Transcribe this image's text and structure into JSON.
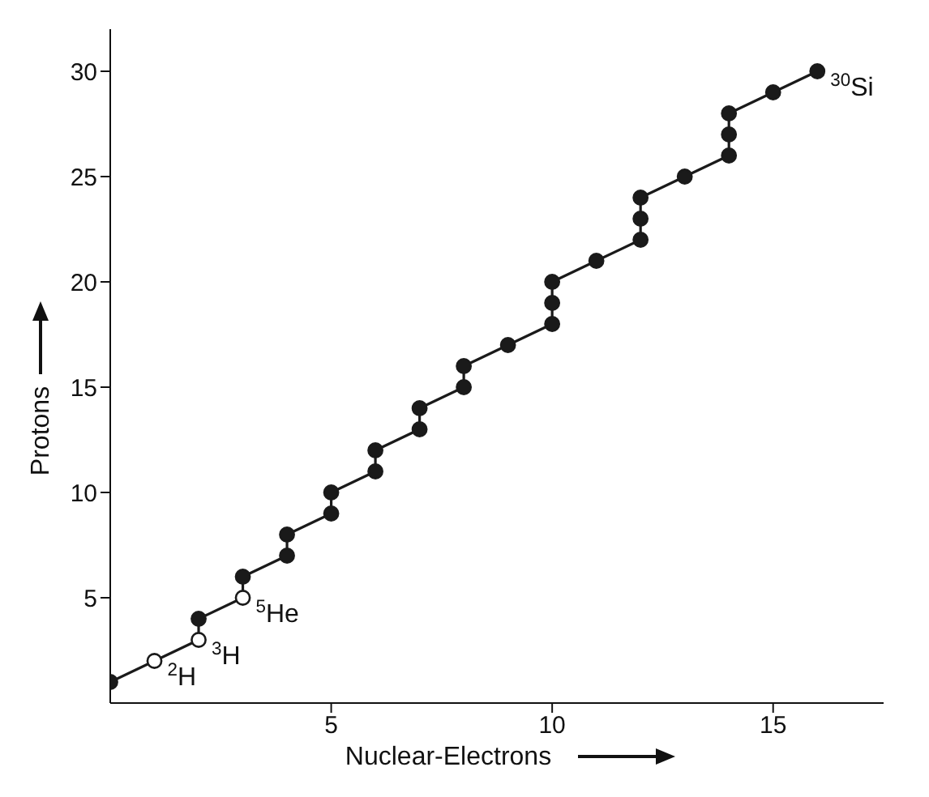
{
  "chart_data": {
    "type": "line",
    "xlabel": "Nuclear-Electrons",
    "ylabel": "Protons",
    "x": [
      0,
      1,
      2,
      2,
      3,
      3,
      4,
      4,
      5,
      5,
      6,
      6,
      7,
      7,
      8,
      8,
      9,
      10,
      10,
      10,
      11,
      12,
      12,
      12,
      13,
      14,
      14,
      14,
      15,
      16
    ],
    "values": [
      1,
      2,
      3,
      4,
      5,
      6,
      7,
      8,
      9,
      10,
      11,
      12,
      13,
      14,
      15,
      16,
      17,
      18,
      19,
      20,
      21,
      22,
      23,
      24,
      25,
      26,
      27,
      28,
      29,
      30
    ],
    "color": "#1a1a1a",
    "colors": [
      "#1a1a1a",
      "#ffffff",
      "#ffffff",
      "#1a1a1a",
      "#ffffff",
      "#1a1a1a",
      "#1a1a1a",
      "#1a1a1a",
      "#1a1a1a",
      "#1a1a1a",
      "#1a1a1a",
      "#1a1a1a",
      "#1a1a1a",
      "#1a1a1a",
      "#1a1a1a",
      "#1a1a1a",
      "#1a1a1a",
      "#1a1a1a",
      "#1a1a1a",
      "#1a1a1a",
      "#1a1a1a",
      "#1a1a1a",
      "#1a1a1a",
      "#1a1a1a",
      "#1a1a1a",
      "#1a1a1a",
      "#1a1a1a",
      "#1a1a1a",
      "#1a1a1a",
      "#1a1a1a"
    ],
    "marker": "circle",
    "line_style": "solid",
    "xlim": [
      0,
      17.5
    ],
    "ylim": [
      0,
      32
    ],
    "xticks": [
      5,
      10,
      15
    ],
    "yticks": [
      5,
      10,
      15,
      20,
      25,
      30
    ],
    "annotations": [
      {
        "text": "$^{2}$H",
        "x": 1,
        "y": 2
      },
      {
        "text": "$^{3}$H",
        "x": 2,
        "y": 3
      },
      {
        "text": "$^{5}$He",
        "x": 3,
        "y": 5
      },
      {
        "text": "$^{30}$Si",
        "x": 16,
        "y": 30
      }
    ]
  }
}
